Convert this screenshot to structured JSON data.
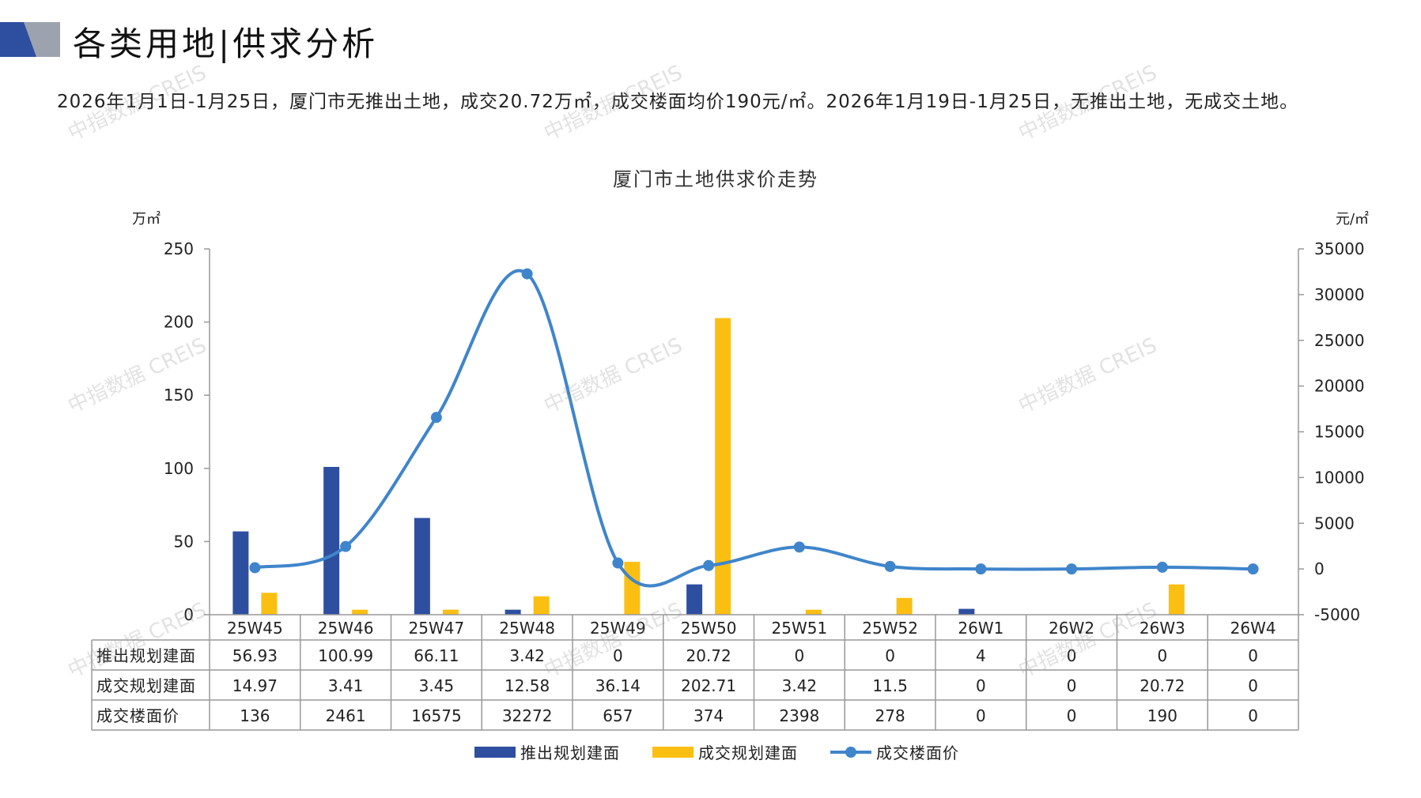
{
  "page": {
    "title": "各类用地|供求分析",
    "summary": "2026年1月1日-1月25日，厦门市无推出土地，成交20.72万㎡，成交楼面均价190元/㎡。2026年1月19日-1月25日，无推出土地，无成交土地。",
    "watermark": "中指数据 CREIS"
  },
  "colors": {
    "supply": "#2E4FA0",
    "deal": "#FBBF12",
    "price": "#3F85CB",
    "logo_dark": "#2E4FA0",
    "logo_gray": "#9CA3AF"
  },
  "chart_data": {
    "type": "bar",
    "title": "厦门市土地供求价走势",
    "y_left_unit": "万㎡",
    "y_right_unit": "元/㎡",
    "categories": [
      "25W45",
      "25W46",
      "25W47",
      "25W48",
      "25W49",
      "25W50",
      "25W51",
      "25W52",
      "26W1",
      "26W2",
      "26W3",
      "26W4"
    ],
    "y_left": {
      "min": 0,
      "max": 250,
      "ticks": [
        0,
        50,
        100,
        150,
        200,
        250
      ]
    },
    "y_right": {
      "min": -5000,
      "max": 35000,
      "ticks": [
        -5000,
        0,
        5000,
        10000,
        15000,
        20000,
        25000,
        30000,
        35000
      ]
    },
    "series": [
      {
        "name": "推出规划建面",
        "kind": "bar",
        "axis": "left",
        "values": [
          56.93,
          100.99,
          66.11,
          3.42,
          0,
          20.72,
          0,
          0,
          4,
          0,
          0,
          0
        ],
        "labels": [
          "56.93",
          "100.99",
          "66.11",
          "3.42",
          "0",
          "20.72",
          "0",
          "0",
          "4",
          "0",
          "0",
          "0"
        ]
      },
      {
        "name": "成交规划建面",
        "kind": "bar",
        "axis": "left",
        "values": [
          14.97,
          3.41,
          3.45,
          12.58,
          36.14,
          202.71,
          3.42,
          11.5,
          0,
          0,
          20.72,
          0
        ],
        "labels": [
          "14.97",
          "3.41",
          "3.45",
          "12.58",
          "36.14",
          "202.71",
          "3.42",
          "11.5",
          "0",
          "0",
          "20.72",
          "0"
        ]
      },
      {
        "name": "成交楼面价",
        "kind": "line",
        "axis": "right",
        "values": [
          136,
          2461,
          16575,
          32272,
          657,
          374,
          2398,
          278,
          0,
          0,
          190,
          0
        ],
        "labels": [
          "136",
          "2461",
          "16575",
          "32272",
          "657",
          "374",
          "2398",
          "278",
          "0",
          "0",
          "190",
          "0"
        ]
      }
    ],
    "legend_position": "bottom"
  }
}
